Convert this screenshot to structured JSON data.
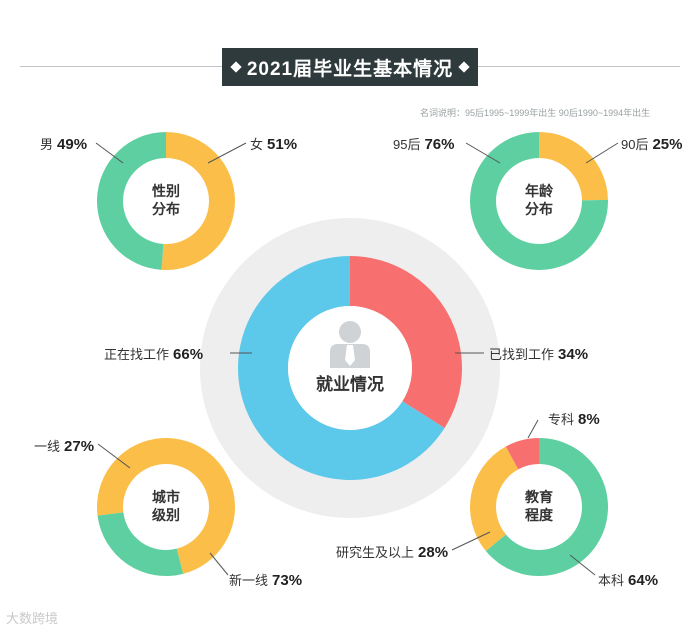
{
  "title": "2021届毕业生基本情况",
  "note": "名词说明：95后1995~1999年出生  90后1990~1994年出生",
  "watermark": "大数跨境",
  "colors": {
    "green": "#5ecfa0",
    "yellow": "#fbbf49",
    "blue": "#5cc8ea",
    "red": "#f7706f",
    "halo": "#eeeeee",
    "dark": "#2f3a3d"
  },
  "chart_data": [
    {
      "type": "pie",
      "title": "就业情况",
      "slices": [
        {
          "label": "已找到工作",
          "value": 34,
          "display": "34%",
          "color": "#f7706f"
        },
        {
          "label": "正在找工作",
          "value": 66,
          "display": "66%",
          "color": "#5cc8ea"
        }
      ]
    },
    {
      "type": "pie",
      "title": "性别分布",
      "title_lines": [
        "性别",
        "分布"
      ],
      "slices": [
        {
          "label": "女",
          "value": 51,
          "display": "51%",
          "color": "#fbbf49"
        },
        {
          "label": "男",
          "value": 49,
          "display": "49%",
          "color": "#5ecfa0"
        }
      ]
    },
    {
      "type": "pie",
      "title": "年龄分布",
      "title_lines": [
        "年龄",
        "分布"
      ],
      "slices": [
        {
          "label": "90后",
          "value": 25,
          "display": "25%",
          "color": "#fbbf49"
        },
        {
          "label": "95后",
          "value": 76,
          "display": "76%",
          "color": "#5ecfa0"
        }
      ]
    },
    {
      "type": "pie",
      "title": "城市级别",
      "title_lines": [
        "城市",
        "级别"
      ],
      "slices": [
        {
          "label": "新一线",
          "value": 73,
          "display": "73%",
          "color": "#fbbf49"
        },
        {
          "label": "一线",
          "value": 27,
          "display": "27%",
          "color": "#5ecfa0"
        }
      ]
    },
    {
      "type": "pie",
      "title": "教育程度",
      "title_lines": [
        "教育",
        "程度"
      ],
      "slices": [
        {
          "label": "本科",
          "value": 64,
          "display": "64%",
          "color": "#5ecfa0"
        },
        {
          "label": "研究生及以上",
          "value": 28,
          "display": "28%",
          "color": "#fbbf49"
        },
        {
          "label": "专科",
          "value": 8,
          "display": "8%",
          "color": "#f7706f"
        }
      ]
    }
  ]
}
